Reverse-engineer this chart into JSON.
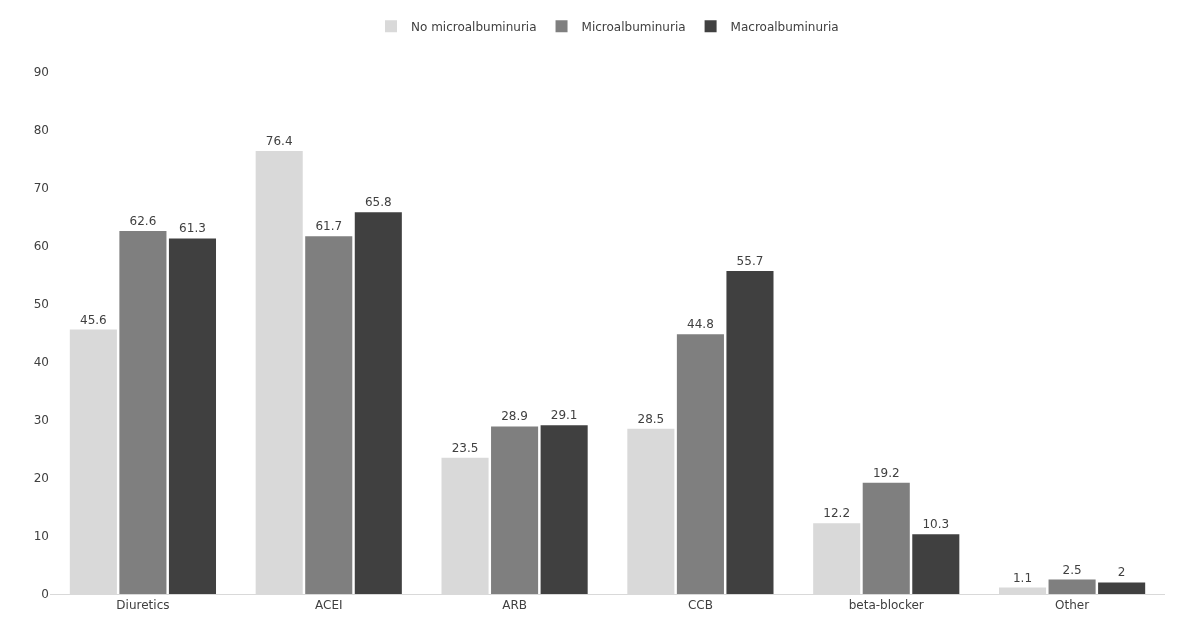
{
  "chart_data": {
    "type": "bar",
    "categories": [
      "Diuretics",
      "ACEI",
      "ARB",
      "CCB",
      "beta-blocker",
      "Other"
    ],
    "series": [
      {
        "name": "No microalbuminuria",
        "color": "#d9d9d9",
        "values": [
          45.6,
          76.4,
          23.5,
          28.5,
          12.2,
          1.1
        ]
      },
      {
        "name": "Microalbuminuria",
        "color": "#7f7f7f",
        "values": [
          62.6,
          61.7,
          28.9,
          44.8,
          19.2,
          2.5
        ]
      },
      {
        "name": "Macroalbuminuria",
        "color": "#404040",
        "values": [
          61.3,
          65.8,
          29.1,
          55.7,
          10.3,
          2
        ]
      }
    ],
    "ylim": [
      0,
      90
    ],
    "yticks": [
      0,
      10,
      20,
      30,
      40,
      50,
      60,
      70,
      80,
      90
    ],
    "grid": false,
    "legend": "top",
    "data_labels": true
  }
}
